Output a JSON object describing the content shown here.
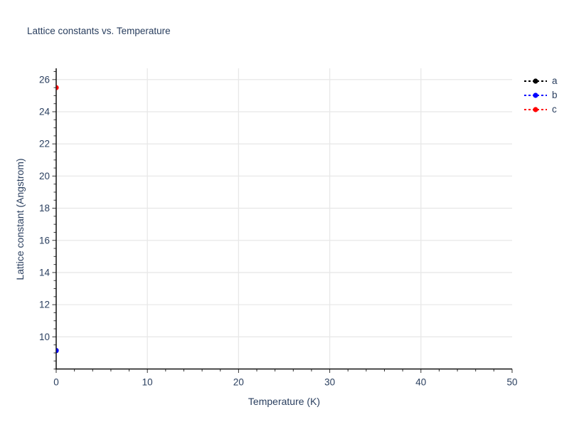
{
  "chart_data": {
    "type": "scatter",
    "title": "Lattice constants vs. Temperature",
    "xlabel": "Temperature (K)",
    "ylabel": "Lattice constant (Angstrom)",
    "xlim": [
      0,
      50
    ],
    "ylim": [
      8.0,
      26.7
    ],
    "xticks": [
      0,
      10,
      20,
      30,
      40,
      50
    ],
    "yticks": [
      10,
      12,
      14,
      16,
      18,
      20,
      22,
      24,
      26
    ],
    "x_minor_step": 2,
    "y_minor_step": 0.5,
    "grid": true,
    "grid_color": "#e8e8e8",
    "axis_color": "#111111",
    "tick_color": "#333333",
    "text_color": "#2a3f5f",
    "legend_position": "outside-top-right",
    "marker_style": "circle",
    "line_style": "dotted",
    "series": [
      {
        "name": "a",
        "color": "#000000",
        "points": [
          {
            "x": 0,
            "y": 9.15
          }
        ]
      },
      {
        "name": "b",
        "color": "#0000ff",
        "points": [
          {
            "x": 0,
            "y": 9.15
          }
        ]
      },
      {
        "name": "c",
        "color": "#ff0000",
        "points": [
          {
            "x": 0,
            "y": 25.5
          }
        ]
      }
    ]
  }
}
